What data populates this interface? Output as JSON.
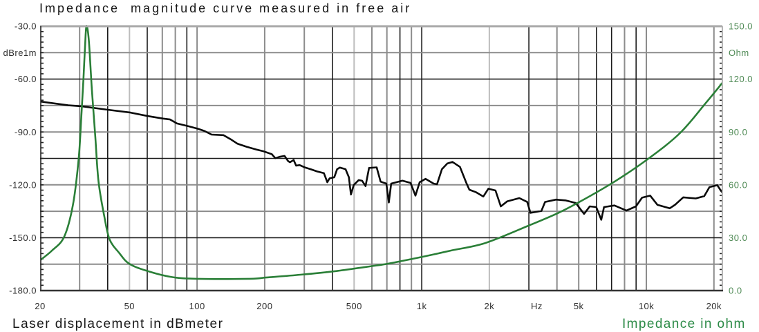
{
  "title": "Impedance  magnitude curve measured in free air",
  "footer": {
    "left_label": "Laser displacement in dBmeter",
    "right_label": "Impedance in ohm"
  },
  "colors": {
    "displacement_curve": "#0a0a0a",
    "impedance_curve": "#2a7f37",
    "left_axis_text": "#2e2e2e",
    "right_axis_text": "#4f8a55",
    "impedance_legend_text": "#2b8a46",
    "grid_dark": "#1a1a1a",
    "grid_mid": "#8c8c8c",
    "grid_light": "#bdbdbd",
    "frame_top": "#a8a8a8",
    "frame_right": "#b5b5b5",
    "frame_axis": "#222222"
  },
  "chart_data": {
    "type": "line",
    "title": "Impedance  magnitude curve measured in free air",
    "xlabel": "Hz",
    "xlabel_at": 3250,
    "x_scale": "log",
    "xlim": [
      20,
      21800
    ],
    "x_ticks": [
      {
        "value": 20,
        "label": "20"
      },
      {
        "value": 50,
        "label": "50"
      },
      {
        "value": 100,
        "label": "100"
      },
      {
        "value": 200,
        "label": "200"
      },
      {
        "value": 500,
        "label": "500"
      },
      {
        "value": 1000,
        "label": "1k"
      },
      {
        "value": 2000,
        "label": "2k"
      },
      {
        "value": 5000,
        "label": "5k"
      },
      {
        "value": 10000,
        "label": "10k"
      },
      {
        "value": 20000,
        "label": "20k"
      }
    ],
    "y_left": {
      "label": "Laser displacement in dBmeter",
      "unit_label": "dBre1m",
      "unit_label_at": -45,
      "lim": [
        -180,
        -30
      ],
      "ticks": [
        {
          "value": -30,
          "label": "-30.0"
        },
        {
          "value": -60,
          "label": "-60.0"
        },
        {
          "value": -90,
          "label": "-90.0"
        },
        {
          "value": -120,
          "label": "-120.0"
        },
        {
          "value": -150,
          "label": "-150.0"
        },
        {
          "value": -180,
          "label": "-180.0"
        }
      ]
    },
    "y_right": {
      "label": "Impedance in ohm",
      "unit_label": "Ohm",
      "unit_label_at": 135,
      "lim": [
        0,
        150
      ],
      "ticks": [
        {
          "value": 150,
          "label": "150.0"
        },
        {
          "value": 120,
          "label": "120.0"
        },
        {
          "value": 90,
          "label": "90.0"
        },
        {
          "value": 60,
          "label": "60.0"
        },
        {
          "value": 30,
          "label": "30.0"
        },
        {
          "value": 0,
          "label": "0.0"
        }
      ]
    },
    "grid": {
      "on": true,
      "x_lines": [
        30,
        40,
        50,
        60,
        70,
        80,
        90,
        100,
        200,
        300,
        400,
        500,
        600,
        700,
        800,
        900,
        1000,
        2000,
        3000,
        4000,
        5000,
        6000,
        7000,
        8000,
        9000,
        10000,
        20000
      ],
      "x_dark": [
        40,
        60,
        90,
        400,
        800,
        1000,
        3000,
        6000,
        7000,
        9000
      ],
      "x_light": [
        50,
        500,
        2000
      ],
      "y_step": 15,
      "y_dark": [
        -60,
        -105,
        -150
      ],
      "minor_tick_step": 3
    },
    "legend": "none (axis captions below plot)",
    "series": [
      {
        "name": "Laser displacement in dBmeter",
        "axis": "left",
        "unit": "dB re 1m",
        "points": [
          [
            20,
            -72.7
          ],
          [
            26.7,
            -74.9
          ],
          [
            30.5,
            -75.4
          ],
          [
            40,
            -77.4
          ],
          [
            50.5,
            -79.0
          ],
          [
            60.4,
            -81.0
          ],
          [
            70.6,
            -82.4
          ],
          [
            75.8,
            -82.9
          ],
          [
            81.4,
            -85.2
          ],
          [
            91.8,
            -86.8
          ],
          [
            101,
            -88.2
          ],
          [
            108,
            -89.5
          ],
          [
            116,
            -91.5
          ],
          [
            131,
            -91.8
          ],
          [
            141,
            -94.1
          ],
          [
            151,
            -96.6
          ],
          [
            166,
            -98.4
          ],
          [
            184,
            -100.0
          ],
          [
            198,
            -101.0
          ],
          [
            215,
            -102.6
          ],
          [
            223,
            -104.9
          ],
          [
            233,
            -104.1
          ],
          [
            245,
            -103.6
          ],
          [
            254,
            -106.5
          ],
          [
            259,
            -107.2
          ],
          [
            269,
            -105.9
          ],
          [
            276,
            -109.1
          ],
          [
            286,
            -108.8
          ],
          [
            303,
            -110.2
          ],
          [
            320,
            -111.1
          ],
          [
            342,
            -112.4
          ],
          [
            367,
            -113.4
          ],
          [
            380,
            -118.5
          ],
          [
            389,
            -116.3
          ],
          [
            408,
            -115.7
          ],
          [
            420,
            -111.1
          ],
          [
            432,
            -110.2
          ],
          [
            458,
            -111.1
          ],
          [
            474,
            -115.7
          ],
          [
            484,
            -125.5
          ],
          [
            498,
            -120.1
          ],
          [
            524,
            -117.3
          ],
          [
            543,
            -117.7
          ],
          [
            562,
            -120.7
          ],
          [
            583,
            -110.4
          ],
          [
            630,
            -110.1
          ],
          [
            656,
            -118.2
          ],
          [
            696,
            -119.3
          ],
          [
            714,
            -130.0
          ],
          [
            731,
            -119.3
          ],
          [
            820,
            -117.6
          ],
          [
            892,
            -118.9
          ],
          [
            938,
            -126.1
          ],
          [
            979,
            -118.5
          ],
          [
            1040,
            -116.6
          ],
          [
            1130,
            -119.3
          ],
          [
            1170,
            -119.7
          ],
          [
            1230,
            -111.1
          ],
          [
            1300,
            -107.9
          ],
          [
            1370,
            -107.0
          ],
          [
            1480,
            -109.8
          ],
          [
            1580,
            -118.9
          ],
          [
            1630,
            -122.8
          ],
          [
            1740,
            -124.1
          ],
          [
            1880,
            -126.6
          ],
          [
            1980,
            -122.2
          ],
          [
            2130,
            -123.2
          ],
          [
            2250,
            -132.2
          ],
          [
            2400,
            -129.4
          ],
          [
            2720,
            -127.5
          ],
          [
            2950,
            -129.7
          ],
          [
            3050,
            -135.9
          ],
          [
            3410,
            -134.8
          ],
          [
            3540,
            -129.7
          ],
          [
            3960,
            -128.4
          ],
          [
            4360,
            -128.8
          ],
          [
            4850,
            -130.3
          ],
          [
            5280,
            -136.5
          ],
          [
            5600,
            -132.2
          ],
          [
            5980,
            -132.6
          ],
          [
            6300,
            -139.8
          ],
          [
            6480,
            -132.6
          ],
          [
            7210,
            -131.7
          ],
          [
            8150,
            -134.6
          ],
          [
            8990,
            -132.2
          ],
          [
            9570,
            -127.3
          ],
          [
            10400,
            -126.1
          ],
          [
            11200,
            -131.3
          ],
          [
            12700,
            -133.3
          ],
          [
            13400,
            -131.4
          ],
          [
            14600,
            -127.1
          ],
          [
            16600,
            -127.7
          ],
          [
            18100,
            -126.4
          ],
          [
            19100,
            -121.3
          ],
          [
            20700,
            -120.2
          ],
          [
            21500,
            -123.4
          ],
          [
            21800,
            -124.4
          ]
        ]
      },
      {
        "name": "Impedance in ohm",
        "axis": "right",
        "unit": "Ohm",
        "points": [
          [
            20,
            17.2
          ],
          [
            22.6,
            22.7
          ],
          [
            25.6,
            30.5
          ],
          [
            28.0,
            48.6
          ],
          [
            29.7,
            74.8
          ],
          [
            30.5,
            98.3
          ],
          [
            31.2,
            120.6
          ],
          [
            31.9,
            145.3
          ],
          [
            32.3,
            150.0
          ],
          [
            33.0,
            141.0
          ],
          [
            34.0,
            114.0
          ],
          [
            35.2,
            87.7
          ],
          [
            36.4,
            62.0
          ],
          [
            38.6,
            42.3
          ],
          [
            40.8,
            29.0
          ],
          [
            45.1,
            21.2
          ],
          [
            49.8,
            15.3
          ],
          [
            59.1,
            11.4
          ],
          [
            76.3,
            7.8
          ],
          [
            99.3,
            6.7
          ],
          [
            172,
            6.7
          ],
          [
            202,
            7.4
          ],
          [
            288,
            9.0
          ],
          [
            411,
            11.0
          ],
          [
            617,
            14.1
          ],
          [
            711,
            15.3
          ],
          [
            1010,
            19.2
          ],
          [
            1350,
            22.7
          ],
          [
            1920,
            27.0
          ],
          [
            3010,
            37.0
          ],
          [
            4060,
            44.1
          ],
          [
            5090,
            50.6
          ],
          [
            7210,
            61.8
          ],
          [
            10200,
            74.8
          ],
          [
            14100,
            89.3
          ],
          [
            18300,
            106.1
          ],
          [
            21800,
            117.9
          ]
        ]
      }
    ]
  }
}
